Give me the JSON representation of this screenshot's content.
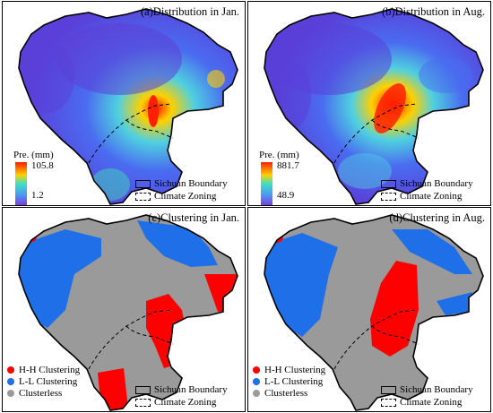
{
  "panels": {
    "a": {
      "title": "(a)Distribution in Jan.",
      "cb_label": "Pre.  (mm)",
      "max": "105.8",
      "min": "1.2"
    },
    "b": {
      "title": "(b)Distribution in Aug.",
      "cb_label": "Pre.  (mm)",
      "max": "881.7",
      "min": "48.9"
    },
    "c": {
      "title": "(c)Clustering in Jan."
    },
    "d": {
      "title": "(d)Clustering in Aug."
    }
  },
  "legend": {
    "boundary": "Sichuan Boundary",
    "zoning": "Climate Zoning",
    "hh": "H-H Clustering",
    "ll": "L-L Clustering",
    "none": "Clusterless"
  },
  "colors": {
    "hh": "#ff0000",
    "ll": "#1f6fe8",
    "none": "#9a9a9a",
    "low": "#5a3fd8",
    "high": "#ff2000"
  }
}
